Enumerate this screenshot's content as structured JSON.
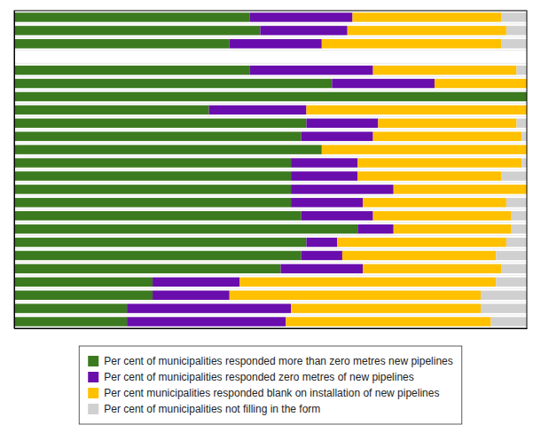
{
  "chart_data": {
    "type": "bar",
    "orientation": "horizontal",
    "stacked": true,
    "tick_labels": false,
    "legend": "bottom",
    "xlim": [
      0,
      100
    ],
    "categories": [
      null,
      null,
      null,
      null,
      null,
      null,
      null,
      null,
      null,
      null,
      null,
      null,
      null,
      null,
      null,
      null,
      null,
      null,
      null,
      null,
      null,
      null,
      null,
      null
    ],
    "series": [
      {
        "name": "Per cent of municipalities responded more than zero metres new pipelines",
        "color": "#3c7a1f",
        "values": [
          46,
          48,
          42,
          0,
          46,
          62,
          100,
          38,
          57,
          56,
          60,
          54,
          54,
          54,
          54,
          56,
          67,
          57,
          56,
          52,
          27,
          27,
          22,
          22
        ]
      },
      {
        "name": "Per cent of municipalities responded zero metres of new pipelines",
        "color": "#6a0dad",
        "values": [
          20,
          17,
          18,
          0,
          24,
          20,
          0,
          19,
          14,
          14,
          0,
          13,
          13,
          20,
          14,
          14,
          7,
          6,
          8,
          16,
          17,
          15,
          32,
          31
        ]
      },
      {
        "name": "Per cent municipalities responded blank on installation of new pipelines",
        "color": "#ffc000",
        "values": [
          29,
          31,
          35,
          0,
          28,
          18,
          0,
          43,
          27,
          29,
          40,
          32,
          28,
          26,
          28,
          27,
          23,
          33,
          30,
          27,
          50,
          49,
          37,
          40
        ]
      },
      {
        "name": "Per cent of municipalities not filling in the form",
        "color": "#d0d0d0",
        "values": [
          5,
          4,
          5,
          0,
          2,
          0,
          0,
          0,
          2,
          1,
          0,
          1,
          5,
          0,
          4,
          3,
          3,
          4,
          6,
          5,
          6,
          9,
          9,
          7
        ]
      }
    ]
  }
}
